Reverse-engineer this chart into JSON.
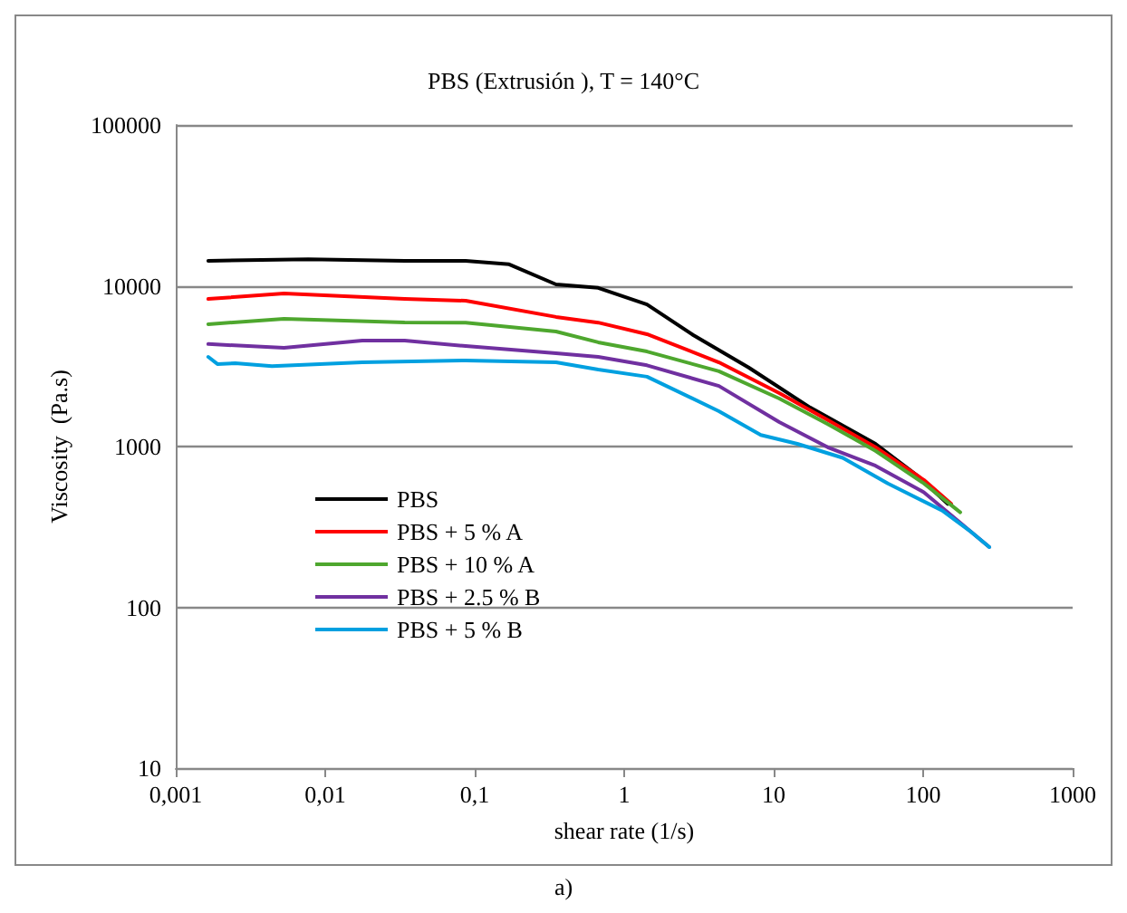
{
  "chart_data": {
    "type": "line",
    "title": "PBS (Extrusión ), T = 140°C",
    "xlabel": "shear rate (1/s)",
    "ylabel": "Viscosity  (Pa.s)",
    "annotations": [
      "a)"
    ],
    "log": "xy",
    "grid": "y",
    "legend": "bottom left",
    "marker": "none",
    "line_style": "solid",
    "xlim": [
      0.001,
      1000
    ],
    "ylim": [
      10,
      100000
    ],
    "xticks": [
      {
        "value": 0.001,
        "label": "0,001"
      },
      {
        "value": 0.01,
        "label": "0,01"
      },
      {
        "value": 0.1,
        "label": "0,1"
      },
      1,
      10,
      100,
      1000
    ],
    "yticks": [
      10,
      100,
      1000,
      10000,
      100000
    ],
    "series": [
      {
        "name": "PBS",
        "color": "#000000",
        "x": [
          0.00165,
          0.0077,
          0.034,
          0.087,
          0.17,
          0.35,
          0.67,
          1.42,
          2.9,
          6.8,
          17.5,
          48,
          93,
          146
        ],
        "values": [
          14300,
          14600,
          14300,
          14300,
          13600,
          10200,
          9700,
          7650,
          4930,
          3100,
          1750,
          1040,
          650,
          440
        ]
      },
      {
        "name": "PBS + 5 % A",
        "color": "#ff0000",
        "x": [
          0.00165,
          0.0053,
          0.034,
          0.087,
          0.35,
          0.67,
          1.42,
          4.3,
          10.9,
          23,
          48,
          101,
          154
        ],
        "values": [
          8280,
          8950,
          8280,
          8070,
          6400,
          5900,
          5000,
          3340,
          2150,
          1460,
          990,
          620,
          440
        ]
      },
      {
        "name": "PBS + 10 % A",
        "color": "#4ea72e",
        "x": [
          0.00165,
          0.0053,
          0.034,
          0.087,
          0.35,
          0.67,
          1.42,
          4.3,
          10.9,
          23,
          48,
          101,
          177
        ],
        "values": [
          5770,
          6220,
          5910,
          5900,
          5190,
          4450,
          3900,
          2940,
          1990,
          1380,
          940,
          590,
          390
        ]
      },
      {
        "name": "PBS + 2.5 % B",
        "color": "#7030a0",
        "x": [
          0.00165,
          0.0053,
          0.0177,
          0.034,
          0.087,
          0.35,
          0.67,
          1.42,
          4.3,
          10.9,
          23,
          48,
          101,
          277
        ],
        "values": [
          4340,
          4110,
          4560,
          4560,
          4220,
          3800,
          3610,
          3200,
          2380,
          1420,
          990,
          760,
          520,
          237
        ]
      },
      {
        "name": "PBS + 5 % B",
        "color": "#00a0e0",
        "x": [
          0.00165,
          0.0019,
          0.0025,
          0.0044,
          0.0177,
          0.087,
          0.35,
          0.67,
          1.42,
          4.3,
          8.2,
          14.4,
          29,
          58,
          134,
          204,
          277
        ],
        "values": [
          3610,
          3260,
          3300,
          3160,
          3340,
          3430,
          3340,
          3010,
          2720,
          1660,
          1180,
          1040,
          850,
          590,
          400,
          300,
          237
        ]
      }
    ]
  }
}
